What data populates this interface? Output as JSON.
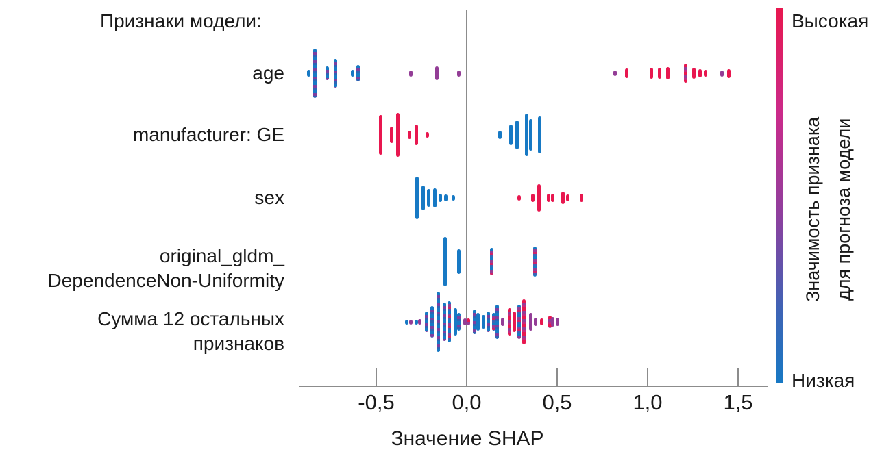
{
  "chart_data": {
    "type": "scatter",
    "subtype": "shap-beeswarm-summary",
    "title": "Признаки модели:",
    "xlabel": "Значение SHAP",
    "xlim": [
      -0.93,
      1.63
    ],
    "grid": "zero-line-only",
    "legend_position": "right-colorbar",
    "x_ticks": [
      {
        "label": "-0,5",
        "value": -0.5
      },
      {
        "label": "0,0",
        "value": 0.0
      },
      {
        "label": "0,5",
        "value": 0.5
      },
      {
        "label": "1,0",
        "value": 1.0
      },
      {
        "label": "1,5",
        "value": 1.5
      }
    ],
    "colors": {
      "low_feature_value_blue": "#1779c4",
      "high_feature_value_red": "#e8174f",
      "mid_feature_value_purple": "#933d96",
      "axis_gray": "#8c8c8c"
    },
    "colorbar": {
      "high_label": "Высокая",
      "low_label": "Низкая",
      "axis_label_line1": "Значимость признака",
      "axis_label_line2": "для прогноза модели"
    },
    "rows": [
      {
        "feature": "age",
        "label_lines": [
          "age"
        ],
        "points": [
          [
            -0.875,
            10,
            "b"
          ],
          [
            -0.84,
            72,
            "bp"
          ],
          [
            -0.77,
            20,
            "bp"
          ],
          [
            -0.725,
            42,
            "bp"
          ],
          [
            -0.63,
            10,
            "b"
          ],
          [
            -0.6,
            24,
            "bp"
          ],
          [
            -0.31,
            9,
            "p"
          ],
          [
            -0.165,
            20,
            "p"
          ],
          [
            -0.045,
            9,
            "p"
          ],
          [
            0.82,
            8,
            "p"
          ],
          [
            0.885,
            14,
            "r"
          ],
          [
            1.02,
            16,
            "r"
          ],
          [
            1.065,
            16,
            "r"
          ],
          [
            1.11,
            18,
            "r"
          ],
          [
            1.21,
            28,
            "rp"
          ],
          [
            1.255,
            16,
            "r"
          ],
          [
            1.29,
            12,
            "r"
          ],
          [
            1.32,
            10,
            "r"
          ],
          [
            1.41,
            9,
            "p"
          ],
          [
            1.45,
            13,
            "r"
          ]
        ]
      },
      {
        "feature": "manufacturer: GE",
        "label_lines": [
          "manufacturer: GE"
        ],
        "points": [
          [
            -0.477,
            58,
            "r"
          ],
          [
            -0.413,
            24,
            "r"
          ],
          [
            -0.382,
            64,
            "r"
          ],
          [
            -0.318,
            12,
            "r"
          ],
          [
            -0.28,
            30,
            "r"
          ],
          [
            -0.216,
            8,
            "r"
          ],
          [
            0.182,
            12,
            "b"
          ],
          [
            0.246,
            30,
            "b"
          ],
          [
            0.277,
            42,
            "b"
          ],
          [
            0.33,
            62,
            "b"
          ],
          [
            0.356,
            46,
            "b"
          ],
          [
            0.405,
            54,
            "b"
          ]
        ]
      },
      {
        "feature": "sex",
        "label_lines": [
          "sex"
        ],
        "points": [
          [
            -0.273,
            62,
            "b"
          ],
          [
            -0.239,
            36,
            "b"
          ],
          [
            -0.212,
            26,
            "b"
          ],
          [
            -0.178,
            28,
            "b"
          ],
          [
            -0.144,
            12,
            "b"
          ],
          [
            -0.117,
            10,
            "b"
          ],
          [
            -0.072,
            8,
            "b"
          ],
          [
            0.288,
            8,
            "r"
          ],
          [
            0.367,
            12,
            "r"
          ],
          [
            0.401,
            40,
            "r"
          ],
          [
            0.451,
            12,
            "r"
          ],
          [
            0.477,
            12,
            "r"
          ],
          [
            0.534,
            18,
            "r"
          ],
          [
            0.557,
            10,
            "r"
          ],
          [
            0.633,
            12,
            "r"
          ]
        ]
      },
      {
        "feature": "original_gldm_DependenceNon-Uniformity",
        "label_lines": [
          "original_gldm_",
          "DependenceNon-Uniformity"
        ],
        "points": [
          [
            -0.121,
            72,
            "b"
          ],
          [
            -0.045,
            36,
            "b"
          ],
          [
            0.14,
            40,
            "m"
          ],
          [
            0.375,
            44,
            "m"
          ]
        ]
      },
      {
        "feature": "Сумма 12 остальных признаков",
        "label_lines": [
          "Сумма 12 остальных",
          "признаков"
        ],
        "points": [
          [
            -0.333,
            7,
            "b"
          ],
          [
            -0.307,
            7,
            "p"
          ],
          [
            -0.28,
            7,
            "b"
          ],
          [
            -0.258,
            8,
            "p"
          ],
          [
            -0.22,
            30,
            "bp"
          ],
          [
            -0.193,
            46,
            "bp"
          ],
          [
            -0.159,
            88,
            "bp"
          ],
          [
            -0.125,
            56,
            "bp"
          ],
          [
            -0.095,
            60,
            "m"
          ],
          [
            -0.064,
            40,
            "b"
          ],
          [
            -0.042,
            26,
            "bp"
          ],
          [
            -0.011,
            10,
            "p"
          ],
          [
            0.008,
            10,
            "rp"
          ],
          [
            0.042,
            36,
            "bp"
          ],
          [
            0.061,
            26,
            "b"
          ],
          [
            0.091,
            20,
            "b"
          ],
          [
            0.121,
            30,
            "bp"
          ],
          [
            0.148,
            26,
            "m"
          ],
          [
            0.17,
            50,
            "bp"
          ],
          [
            0.197,
            12,
            "p"
          ],
          [
            0.235,
            40,
            "rp"
          ],
          [
            0.265,
            30,
            "r"
          ],
          [
            0.288,
            50,
            "m"
          ],
          [
            0.318,
            66,
            "rp"
          ],
          [
            0.356,
            26,
            "p"
          ],
          [
            0.382,
            12,
            "p"
          ],
          [
            0.413,
            10,
            "r"
          ],
          [
            0.459,
            18,
            "rp"
          ],
          [
            0.474,
            14,
            "p"
          ],
          [
            0.5,
            12,
            "p"
          ]
        ]
      }
    ]
  }
}
